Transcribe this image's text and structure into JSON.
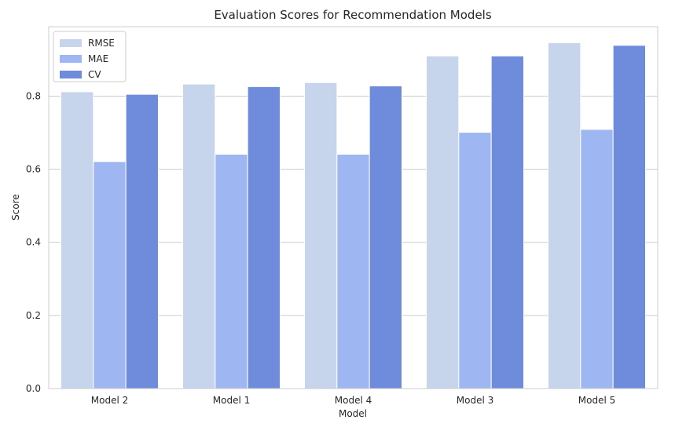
{
  "chart_data": {
    "type": "bar",
    "title": "Evaluation Scores for Recommendation Models",
    "xlabel": "Model",
    "ylabel": "Score",
    "categories": [
      "Model 2",
      "Model 1",
      "Model 4",
      "Model 3",
      "Model 5"
    ],
    "series": [
      {
        "name": "RMSE",
        "color": "#c6d4ec",
        "values": [
          0.812,
          0.833,
          0.837,
          0.91,
          0.946
        ]
      },
      {
        "name": "MAE",
        "color": "#9eb6f1",
        "values": [
          0.621,
          0.641,
          0.641,
          0.701,
          0.709
        ]
      },
      {
        "name": "CV",
        "color": "#6f8bdc",
        "values": [
          0.805,
          0.826,
          0.828,
          0.91,
          0.939
        ]
      }
    ],
    "ylim": [
      0,
      0.99
    ],
    "yticks": [
      "0.0",
      "0.2",
      "0.4",
      "0.6",
      "0.8"
    ],
    "grid": "horizontal",
    "legend_position": "top-left"
  }
}
